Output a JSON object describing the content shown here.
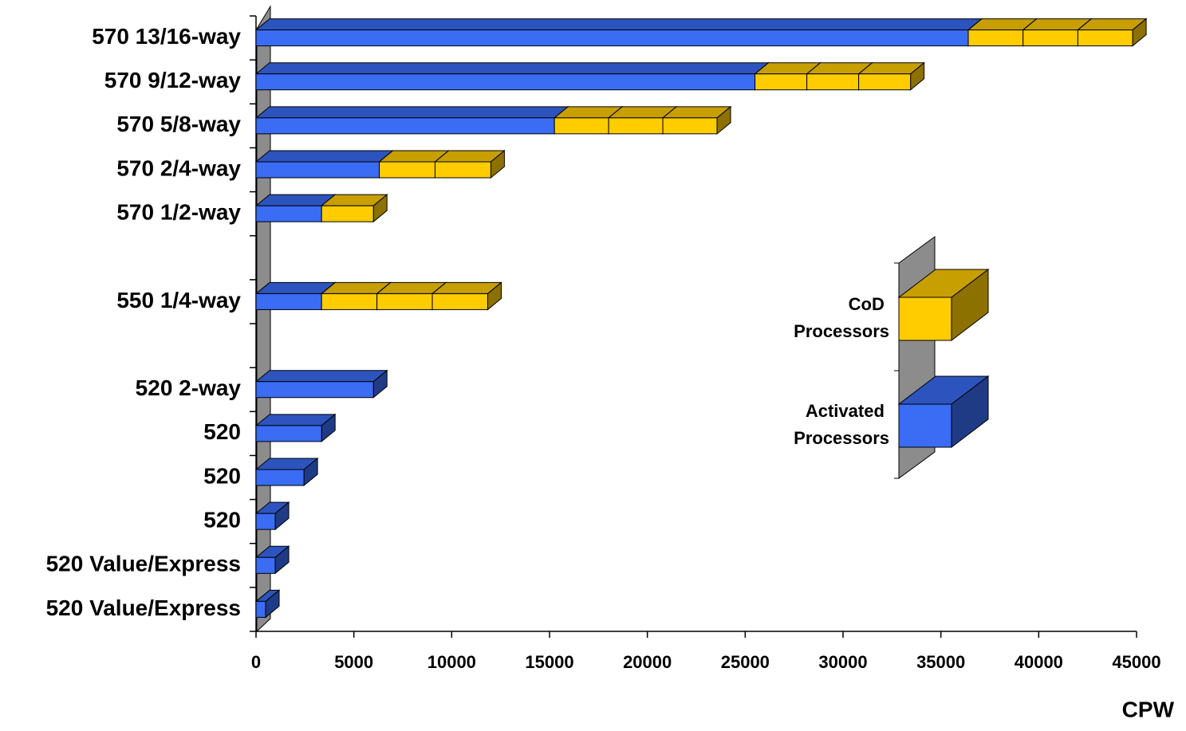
{
  "chart_data": {
    "type": "bar",
    "orientation": "horizontal",
    "stacked": true,
    "three_d": true,
    "x_label": "CPW",
    "categories": [
      "570 13/16-way",
      "570 9/12-way",
      "570 5/8-way",
      "570 2/4-way",
      "570 1/2-way",
      null,
      "550 1/4-way",
      null,
      "520 2-way",
      "520",
      "520",
      "520",
      "520 Value/Express",
      "520 Value/Express"
    ],
    "series": [
      {
        "name": "Activated Processors",
        "color": "#3a6cf4",
        "values": [
          36400,
          25500,
          15250,
          6300,
          3350,
          null,
          3350,
          null,
          6000,
          3350,
          2450,
          980,
          980,
          490
        ]
      },
      {
        "name": "CoD Processors",
        "color": "#ffcc00",
        "values": [
          2800,
          2650,
          2770,
          2850,
          2650,
          null,
          2830,
          null,
          null,
          null,
          null,
          null,
          null,
          null
        ]
      },
      {
        "name": "CoD Processors",
        "color": "#ffcc00",
        "values": [
          2800,
          2650,
          2770,
          2850,
          null,
          null,
          2830,
          null,
          null,
          null,
          null,
          null,
          null,
          null
        ]
      },
      {
        "name": "CoD Processors",
        "color": "#ffcc00",
        "values": [
          2800,
          2650,
          2770,
          null,
          null,
          null,
          2830,
          null,
          null,
          null,
          null,
          null,
          null,
          null
        ]
      }
    ],
    "xlim": [
      0,
      45000
    ],
    "xticks": [
      0,
      5000,
      10000,
      15000,
      20000,
      25000,
      30000,
      35000,
      40000,
      45000
    ],
    "legend": "center right"
  }
}
